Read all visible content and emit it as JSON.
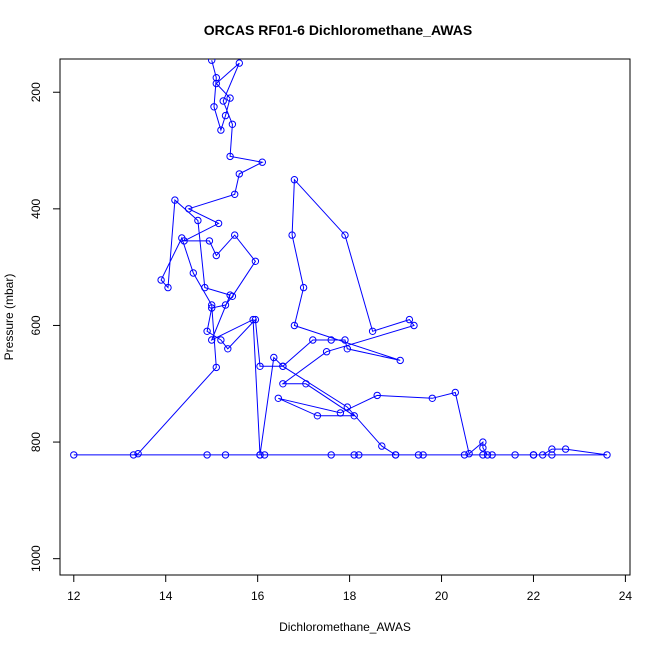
{
  "chart_data": {
    "type": "line",
    "title": "ORCAS RF01-6 Dichloromethane_AWAS",
    "xlabel": "Dichloromethane_AWAS",
    "ylabel": "Pressure (mbar)",
    "xlim": [
      11.7,
      24.1
    ],
    "ylim": [
      1028,
      143
    ],
    "y_reversed": true,
    "x_ticks": [
      12,
      14,
      16,
      18,
      20,
      22,
      24
    ],
    "y_ticks": [
      200,
      400,
      600,
      800,
      1000
    ],
    "grid": false,
    "legend": "none",
    "series_color": "#0000ff",
    "series": [
      {
        "points": [
          [
            15.0,
            145
          ],
          [
            15.1,
            175
          ],
          [
            15.05,
            225
          ],
          [
            15.2,
            265
          ],
          [
            15.3,
            240
          ],
          [
            15.4,
            210
          ],
          [
            15.1,
            185
          ],
          [
            15.6,
            150
          ],
          [
            15.25,
            215
          ],
          [
            15.45,
            255
          ],
          [
            15.4,
            310
          ],
          [
            16.1,
            320
          ],
          [
            15.6,
            340
          ],
          [
            15.5,
            375
          ],
          [
            14.5,
            400
          ],
          [
            15.15,
            425
          ],
          [
            14.4,
            455
          ],
          [
            14.95,
            455
          ],
          [
            15.1,
            480
          ],
          [
            15.5,
            445
          ],
          [
            15.95,
            490
          ],
          [
            15.45,
            550
          ],
          [
            15.3,
            565
          ],
          [
            15.0,
            570
          ],
          [
            14.9,
            610
          ],
          [
            15.2,
            625
          ],
          [
            15.35,
            640
          ],
          [
            15.95,
            590
          ],
          [
            16.05,
            670
          ],
          [
            16.55,
            670
          ],
          [
            17.2,
            625
          ],
          [
            17.6,
            625
          ],
          [
            17.9,
            625
          ],
          [
            17.95,
            640
          ],
          [
            19.1,
            660
          ],
          [
            16.8,
            600
          ],
          [
            17.0,
            535
          ],
          [
            16.75,
            445
          ],
          [
            16.8,
            350
          ],
          [
            17.9,
            445
          ],
          [
            18.5,
            610
          ],
          [
            19.3,
            590
          ],
          [
            19.4,
            600
          ],
          [
            17.5,
            645
          ],
          [
            16.55,
            700
          ],
          [
            17.05,
            700
          ],
          [
            18.1,
            755
          ],
          [
            17.3,
            755
          ],
          [
            16.45,
            725
          ],
          [
            17.8,
            750
          ],
          [
            18.6,
            720
          ],
          [
            19.8,
            725
          ],
          [
            20.3,
            715
          ],
          [
            20.6,
            820
          ],
          [
            20.9,
            800
          ],
          [
            20.9,
            810
          ],
          [
            21.0,
            822
          ],
          [
            22.0,
            822
          ],
          [
            22.2,
            822
          ],
          [
            22.4,
            812
          ],
          [
            22.7,
            812
          ],
          [
            23.6,
            822
          ],
          [
            22.0,
            822
          ],
          [
            20.5,
            822
          ],
          [
            19.6,
            822
          ],
          [
            19.0,
            822
          ],
          [
            18.7,
            807
          ],
          [
            17.95,
            740
          ],
          [
            16.55,
            670
          ],
          [
            16.35,
            655
          ],
          [
            16.05,
            822
          ],
          [
            15.9,
            590
          ],
          [
            15.0,
            625
          ],
          [
            15.4,
            548
          ],
          [
            14.85,
            535
          ],
          [
            14.7,
            420
          ],
          [
            14.2,
            385
          ],
          [
            14.05,
            535
          ],
          [
            13.9,
            522
          ],
          [
            14.35,
            450
          ],
          [
            14.6,
            510
          ],
          [
            15.0,
            565
          ],
          [
            15.1,
            672
          ],
          [
            13.4,
            820
          ],
          [
            13.3,
            822
          ],
          [
            12.0,
            822
          ],
          [
            15.3,
            822
          ],
          [
            16.05,
            822
          ],
          [
            17.6,
            822
          ],
          [
            18.2,
            822
          ],
          [
            19.0,
            822
          ],
          [
            21.1,
            822
          ],
          [
            22.4,
            822
          ],
          [
            22.0,
            822
          ],
          [
            21.6,
            822
          ],
          [
            20.9,
            822
          ],
          [
            19.5,
            822
          ],
          [
            18.1,
            822
          ],
          [
            16.15,
            822
          ],
          [
            14.9,
            822
          ]
        ]
      }
    ]
  }
}
